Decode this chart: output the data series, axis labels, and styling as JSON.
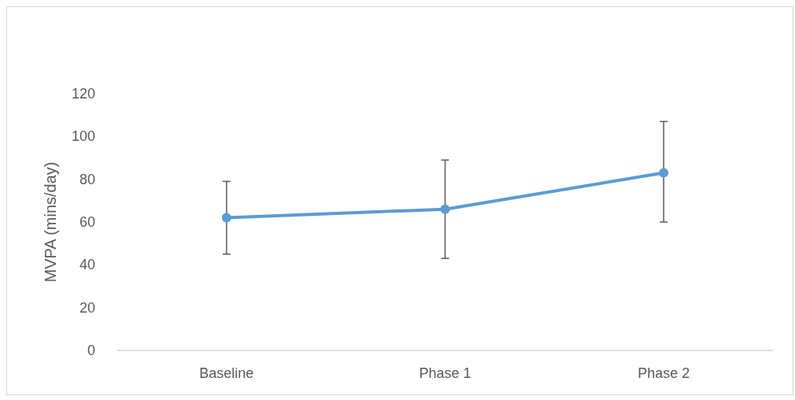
{
  "chart_data": {
    "type": "line",
    "ylabel": "MVPA (mins/day)",
    "categories": [
      "Baseline",
      "Phase 1",
      "Phase 2"
    ],
    "series": [
      {
        "color": "#5b9bd5",
        "values": [
          62,
          66,
          83
        ],
        "errors": [
          [
            45,
            79
          ],
          [
            43,
            89
          ],
          [
            60,
            107
          ]
        ]
      }
    ],
    "ylim": [
      0,
      120
    ],
    "yticks": [
      0,
      20,
      40,
      60,
      80,
      100,
      120
    ],
    "grid": false,
    "marker": "circle",
    "line_style": "solid"
  }
}
